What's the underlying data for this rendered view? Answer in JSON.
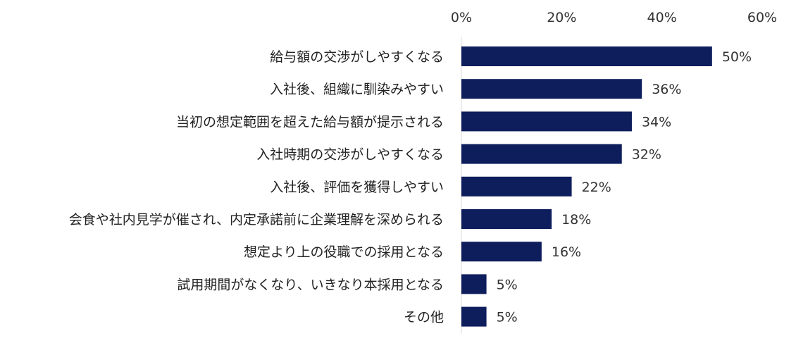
{
  "chart_data": {
    "type": "bar",
    "orientation": "horizontal",
    "title": "",
    "xlabel": "",
    "ylabel": "",
    "xlim": [
      0,
      60
    ],
    "x_ticks": [
      0,
      20,
      40,
      60
    ],
    "x_tick_labels": [
      "0%",
      "20%",
      "40%",
      "60%"
    ],
    "x_axis_position": "top",
    "grid": false,
    "legend": "none",
    "bar_color": "#0e1d5c",
    "categories": [
      "給与額の交渉がしやすくなる",
      "入社後、組織に馴染みやすい",
      "当初の想定範囲を超えた給与額が提示される",
      "入社時期の交渉がしやすくなる",
      "入社後、評価を獲得しやすい",
      "会食や社内見学が催され、内定承諾前に企業理解を深められる",
      "想定より上の役職での採用となる",
      "試用期間がなくなり、いきなり本採用となる",
      "その他"
    ],
    "values": [
      50,
      36,
      34,
      32,
      22,
      18,
      16,
      5,
      5
    ],
    "value_labels": [
      "50%",
      "36%",
      "34%",
      "32%",
      "22%",
      "18%",
      "16%",
      "5%",
      "5%"
    ]
  }
}
